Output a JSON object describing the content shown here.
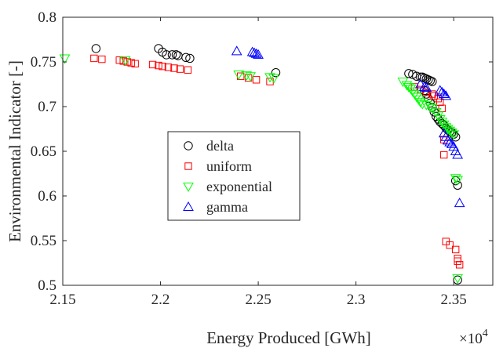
{
  "chart_data": {
    "type": "scatter",
    "xlabel": "Energy Produced [GWh]",
    "ylabel": "Environmental Indicator [-]",
    "x_exponent_label": "×10",
    "x_exponent_power": "4",
    "xlim": [
      2.15,
      2.37
    ],
    "ylim": [
      0.5,
      0.8
    ],
    "x_ticks": [
      2.15,
      2.2,
      2.25,
      2.3,
      2.35
    ],
    "x_tick_labels": [
      "2.15",
      "2.2",
      "2.25",
      "2.3",
      "2.35"
    ],
    "y_ticks": [
      0.5,
      0.55,
      0.6,
      0.65,
      0.7,
      0.75,
      0.8
    ],
    "y_tick_labels": [
      "0.5",
      "0.55",
      "0.6",
      "0.65",
      "0.7",
      "0.75",
      "0.8"
    ],
    "grid": false,
    "legend_position": "center-left",
    "series": [
      {
        "name": "delta",
        "marker": "circle",
        "color": "#000000",
        "points": [
          [
            2.167,
            0.765
          ],
          [
            2.199,
            0.765
          ],
          [
            2.201,
            0.761
          ],
          [
            2.203,
            0.758
          ],
          [
            2.206,
            0.758
          ],
          [
            2.208,
            0.758
          ],
          [
            2.209,
            0.757
          ],
          [
            2.213,
            0.755
          ],
          [
            2.215,
            0.754
          ],
          [
            2.259,
            0.738
          ],
          [
            2.327,
            0.737
          ],
          [
            2.329,
            0.736
          ],
          [
            2.331,
            0.734
          ],
          [
            2.333,
            0.733
          ],
          [
            2.334,
            0.733
          ],
          [
            2.335,
            0.732
          ],
          [
            2.336,
            0.731
          ],
          [
            2.337,
            0.73
          ],
          [
            2.338,
            0.729
          ],
          [
            2.339,
            0.728
          ],
          [
            2.335,
            0.718
          ],
          [
            2.336,
            0.714
          ],
          [
            2.337,
            0.709
          ],
          [
            2.338,
            0.704
          ],
          [
            2.339,
            0.699
          ],
          [
            2.34,
            0.694
          ],
          [
            2.341,
            0.689
          ],
          [
            2.342,
            0.686
          ],
          [
            2.343,
            0.683
          ],
          [
            2.344,
            0.681
          ],
          [
            2.345,
            0.679
          ],
          [
            2.346,
            0.676
          ],
          [
            2.347,
            0.674
          ],
          [
            2.348,
            0.672
          ],
          [
            2.349,
            0.671
          ],
          [
            2.35,
            0.669
          ],
          [
            2.351,
            0.666
          ],
          [
            2.351,
            0.617
          ],
          [
            2.352,
            0.612
          ],
          [
            2.352,
            0.506
          ]
        ]
      },
      {
        "name": "uniform",
        "marker": "square",
        "color": "#ff0000",
        "points": [
          [
            2.166,
            0.754
          ],
          [
            2.17,
            0.753
          ],
          [
            2.179,
            0.752
          ],
          [
            2.181,
            0.751
          ],
          [
            2.183,
            0.75
          ],
          [
            2.185,
            0.749
          ],
          [
            2.187,
            0.748
          ],
          [
            2.196,
            0.747
          ],
          [
            2.199,
            0.746
          ],
          [
            2.201,
            0.745
          ],
          [
            2.204,
            0.744
          ],
          [
            2.207,
            0.743
          ],
          [
            2.21,
            0.742
          ],
          [
            2.214,
            0.741
          ],
          [
            2.241,
            0.734
          ],
          [
            2.245,
            0.732
          ],
          [
            2.249,
            0.73
          ],
          [
            2.256,
            0.728
          ],
          [
            2.33,
            0.722
          ],
          [
            2.333,
            0.719
          ],
          [
            2.336,
            0.716
          ],
          [
            2.339,
            0.714
          ],
          [
            2.34,
            0.712
          ],
          [
            2.342,
            0.709
          ],
          [
            2.343,
            0.705
          ],
          [
            2.344,
            0.698
          ],
          [
            2.345,
            0.663
          ],
          [
            2.345,
            0.646
          ],
          [
            2.346,
            0.549
          ],
          [
            2.348,
            0.545
          ],
          [
            2.351,
            0.54
          ],
          [
            2.352,
            0.53
          ],
          [
            2.352,
            0.527
          ],
          [
            2.353,
            0.523
          ]
        ]
      },
      {
        "name": "exponential",
        "marker": "triangle-down",
        "color": "#00ff00",
        "points": [
          [
            2.151,
            0.754
          ],
          [
            2.182,
            0.752
          ],
          [
            2.24,
            0.736
          ],
          [
            2.244,
            0.735
          ],
          [
            2.246,
            0.734
          ],
          [
            2.256,
            0.733
          ],
          [
            2.258,
            0.732
          ],
          [
            2.324,
            0.728
          ],
          [
            2.326,
            0.724
          ],
          [
            2.327,
            0.722
          ],
          [
            2.328,
            0.72
          ],
          [
            2.329,
            0.717
          ],
          [
            2.33,
            0.714
          ],
          [
            2.331,
            0.711
          ],
          [
            2.332,
            0.708
          ],
          [
            2.333,
            0.705
          ],
          [
            2.334,
            0.703
          ],
          [
            2.336,
            0.702
          ],
          [
            2.338,
            0.7
          ],
          [
            2.339,
            0.698
          ],
          [
            2.341,
            0.694
          ],
          [
            2.342,
            0.69
          ],
          [
            2.343,
            0.686
          ],
          [
            2.344,
            0.683
          ],
          [
            2.345,
            0.68
          ],
          [
            2.346,
            0.677
          ],
          [
            2.347,
            0.675
          ],
          [
            2.348,
            0.673
          ],
          [
            2.349,
            0.671
          ],
          [
            2.35,
            0.669
          ],
          [
            2.351,
            0.62
          ],
          [
            2.352,
            0.618
          ],
          [
            2.352,
            0.508
          ]
        ]
      },
      {
        "name": "gamma",
        "marker": "triangle-up",
        "color": "#0000ff",
        "points": [
          [
            2.239,
            0.762
          ],
          [
            2.247,
            0.761
          ],
          [
            2.248,
            0.76
          ],
          [
            2.249,
            0.759
          ],
          [
            2.25,
            0.758
          ],
          [
            2.333,
            0.725
          ],
          [
            2.335,
            0.722
          ],
          [
            2.336,
            0.721
          ],
          [
            2.343,
            0.718
          ],
          [
            2.344,
            0.716
          ],
          [
            2.345,
            0.714
          ],
          [
            2.346,
            0.712
          ],
          [
            2.345,
            0.67
          ],
          [
            2.346,
            0.666
          ],
          [
            2.347,
            0.662
          ],
          [
            2.348,
            0.66
          ],
          [
            2.349,
            0.658
          ],
          [
            2.35,
            0.655
          ],
          [
            2.351,
            0.65
          ],
          [
            2.352,
            0.646
          ],
          [
            2.353,
            0.592
          ]
        ]
      }
    ]
  }
}
